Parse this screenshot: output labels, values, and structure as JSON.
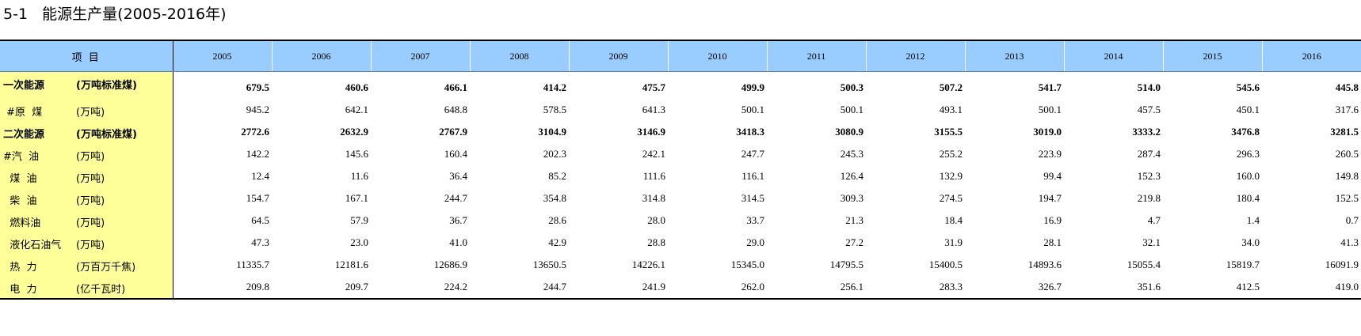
{
  "title": "5-1   能源生产量(2005-2016年)",
  "header": {
    "item_label": "项  目",
    "years": [
      "2005",
      "2006",
      "2007",
      "2008",
      "2009",
      "2010",
      "2011",
      "2012",
      "2013",
      "2014",
      "2015",
      "2016"
    ]
  },
  "rows": [
    {
      "name": "一次能源",
      "unit": "(万吨标准煤)",
      "bold": true,
      "values": [
        "679.5",
        "460.6",
        "466.1",
        "414.2",
        "475.7",
        "499.9",
        "500.3",
        "507.2",
        "541.7",
        "514.0",
        "545.6",
        "445.8"
      ]
    },
    {
      "name": " #原  煤",
      "unit": "(万吨)",
      "bold": false,
      "values": [
        "945.2",
        "642.1",
        "648.8",
        "578.5",
        "641.3",
        "500.1",
        "500.1",
        "493.1",
        "500.1",
        "457.5",
        "450.1",
        "317.6"
      ]
    },
    {
      "name": "二次能源",
      "unit": "(万吨标准煤)",
      "bold": true,
      "values": [
        "2772.6",
        "2632.9",
        "2767.9",
        "3104.9",
        "3146.9",
        "3418.3",
        "3080.9",
        "3155.5",
        "3019.0",
        "3333.2",
        "3476.8",
        "3281.5"
      ]
    },
    {
      "name": "#汽  油",
      "unit": "(万吨)",
      "bold": false,
      "values": [
        "142.2",
        "145.6",
        "160.4",
        "202.3",
        "242.1",
        "247.7",
        "245.3",
        "255.2",
        "223.9",
        "287.4",
        "296.3",
        "260.5"
      ]
    },
    {
      "name": "  煤  油",
      "unit": "(万吨)",
      "bold": false,
      "values": [
        "12.4",
        "11.6",
        "36.4",
        "85.2",
        "111.6",
        "116.1",
        "126.4",
        "132.9",
        "99.4",
        "152.3",
        "160.0",
        "149.8"
      ]
    },
    {
      "name": "  柴  油",
      "unit": "(万吨)",
      "bold": false,
      "values": [
        "154.7",
        "167.1",
        "244.7",
        "354.8",
        "314.8",
        "314.5",
        "309.3",
        "274.5",
        "194.7",
        "219.8",
        "180.4",
        "152.5"
      ]
    },
    {
      "name": "  燃料油",
      "unit": "(万吨)",
      "bold": false,
      "values": [
        "64.5",
        "57.9",
        "36.7",
        "28.6",
        "28.0",
        "33.7",
        "21.3",
        "18.4",
        "16.9",
        "4.7",
        "1.4",
        "0.7"
      ]
    },
    {
      "name": "  液化石油气",
      "unit": "(万吨)",
      "bold": false,
      "values": [
        "47.3",
        "23.0",
        "41.0",
        "42.9",
        "28.8",
        "29.0",
        "27.2",
        "31.9",
        "28.1",
        "32.1",
        "34.0",
        "41.3"
      ]
    },
    {
      "name": "  热  力",
      "unit": "(万百万千焦)",
      "bold": false,
      "values": [
        "11335.7",
        "12181.6",
        "12686.9",
        "13650.5",
        "14226.1",
        "15345.0",
        "14795.5",
        "15400.5",
        "14893.6",
        "15055.4",
        "15819.7",
        "16091.9"
      ]
    },
    {
      "name": "  电  力",
      "unit": "(亿千瓦时)",
      "bold": false,
      "values": [
        "209.8",
        "209.7",
        "224.2",
        "244.7",
        "241.9",
        "262.0",
        "256.1",
        "283.3",
        "326.7",
        "351.6",
        "412.5",
        "419.0"
      ]
    }
  ]
}
